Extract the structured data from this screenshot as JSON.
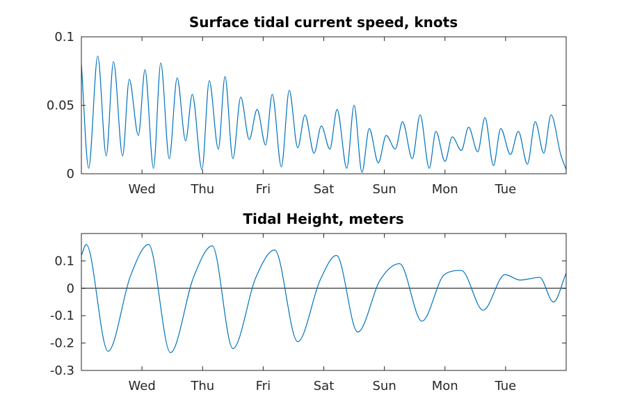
{
  "chart_data": [
    {
      "type": "line",
      "title": "Surface tidal current speed, knots",
      "xlabel": "",
      "ylabel": "",
      "x_range_days": [
        0,
        8
      ],
      "x_ticks": [
        {
          "day": 1,
          "label": "Wed"
        },
        {
          "day": 2,
          "label": "Thu"
        },
        {
          "day": 3,
          "label": "Fri"
        },
        {
          "day": 4,
          "label": "Sat"
        },
        {
          "day": 5,
          "label": "Sun"
        },
        {
          "day": 6,
          "label": "Mon"
        },
        {
          "day": 7,
          "label": "Tue"
        }
      ],
      "ylim": [
        0,
        0.1
      ],
      "y_ticks": [
        {
          "value": 0,
          "label": "0"
        },
        {
          "value": 0.05,
          "label": "0.05"
        },
        {
          "value": 0.1,
          "label": "0.1"
        }
      ],
      "grid": false,
      "zero_line": false,
      "color": "#0072bd",
      "series": [
        {
          "x": [
            0.0,
            0.12,
            0.27,
            0.41,
            0.53,
            0.68,
            0.79,
            0.94,
            1.05,
            1.19,
            1.31,
            1.45,
            1.58,
            1.72,
            1.83,
            1.99,
            2.11,
            2.26,
            2.37,
            2.5,
            2.63,
            2.77,
            2.9,
            3.04,
            3.15,
            3.3,
            3.43,
            3.57,
            3.69,
            3.84,
            3.96,
            4.1,
            4.22,
            4.38,
            4.5,
            4.63,
            4.75,
            4.9,
            5.03,
            5.18,
            5.3,
            5.46,
            5.59,
            5.74,
            5.85,
            6.0,
            6.12,
            6.27,
            6.39,
            6.54,
            6.66,
            6.8,
            6.92,
            7.08,
            7.21,
            7.36,
            7.49,
            7.63,
            7.75,
            7.91,
            8.0
          ],
          "y": [
            0.08,
            0.004,
            0.086,
            0.013,
            0.082,
            0.013,
            0.069,
            0.028,
            0.076,
            0.004,
            0.081,
            0.011,
            0.07,
            0.024,
            0.058,
            0.003,
            0.068,
            0.018,
            0.071,
            0.011,
            0.056,
            0.025,
            0.047,
            0.021,
            0.058,
            0.005,
            0.061,
            0.019,
            0.043,
            0.015,
            0.035,
            0.018,
            0.047,
            0.004,
            0.05,
            0.001,
            0.033,
            0.008,
            0.028,
            0.018,
            0.038,
            0.011,
            0.043,
            0.004,
            0.031,
            0.009,
            0.027,
            0.017,
            0.034,
            0.016,
            0.041,
            0.006,
            0.033,
            0.014,
            0.031,
            0.007,
            0.038,
            0.015,
            0.043,
            0.014,
            0.003
          ]
        }
      ]
    },
    {
      "type": "line",
      "title": "Tidal Height, meters",
      "xlabel": "",
      "ylabel": "",
      "x_range_days": [
        0,
        8
      ],
      "x_ticks": [
        {
          "day": 1,
          "label": "Wed"
        },
        {
          "day": 2,
          "label": "Thu"
        },
        {
          "day": 3,
          "label": "Fri"
        },
        {
          "day": 4,
          "label": "Sat"
        },
        {
          "day": 5,
          "label": "Sun"
        },
        {
          "day": 6,
          "label": "Mon"
        },
        {
          "day": 7,
          "label": "Tue"
        }
      ],
      "ylim": [
        -0.3,
        0.2
      ],
      "y_ticks": [
        {
          "value": -0.3,
          "label": "-0.3"
        },
        {
          "value": -0.2,
          "label": "-0.2"
        },
        {
          "value": -0.1,
          "label": "-0.1"
        },
        {
          "value": 0,
          "label": "0"
        },
        {
          "value": 0.1,
          "label": "0.1"
        }
      ],
      "grid": false,
      "zero_line": true,
      "color": "#0072bd",
      "series": [
        {
          "x": [
            0.0,
            0.08,
            0.44,
            0.81,
            1.11,
            1.47,
            1.85,
            2.16,
            2.5,
            2.88,
            3.19,
            3.57,
            3.94,
            4.21,
            4.56,
            4.93,
            5.25,
            5.62,
            5.99,
            6.27,
            6.63,
            6.99,
            7.24,
            7.56,
            7.79,
            8.0
          ],
          "y": [
            0.12,
            0.16,
            -0.23,
            0.045,
            0.16,
            -0.235,
            0.04,
            0.155,
            -0.22,
            0.04,
            0.14,
            -0.195,
            0.03,
            0.12,
            -0.16,
            0.03,
            0.09,
            -0.12,
            0.05,
            0.065,
            -0.08,
            0.05,
            0.03,
            0.04,
            -0.05,
            0.055
          ]
        }
      ]
    }
  ]
}
